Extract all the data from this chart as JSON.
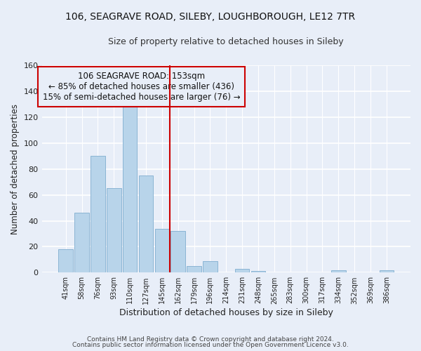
{
  "title": "106, SEAGRAVE ROAD, SILEBY, LOUGHBOROUGH, LE12 7TR",
  "subtitle": "Size of property relative to detached houses in Sileby",
  "xlabel": "Distribution of detached houses by size in Sileby",
  "ylabel": "Number of detached properties",
  "bar_labels": [
    "41sqm",
    "58sqm",
    "76sqm",
    "93sqm",
    "110sqm",
    "127sqm",
    "145sqm",
    "162sqm",
    "179sqm",
    "196sqm",
    "214sqm",
    "231sqm",
    "248sqm",
    "265sqm",
    "283sqm",
    "300sqm",
    "317sqm",
    "334sqm",
    "352sqm",
    "369sqm",
    "386sqm"
  ],
  "bar_values": [
    18,
    46,
    90,
    65,
    130,
    75,
    34,
    32,
    5,
    9,
    0,
    3,
    1,
    0,
    0,
    0,
    0,
    2,
    0,
    0,
    2
  ],
  "bar_color": "#b8d4ea",
  "bar_edge_color": "#8ab4d4",
  "ylim": [
    0,
    160
  ],
  "yticks": [
    0,
    20,
    40,
    60,
    80,
    100,
    120,
    140,
    160
  ],
  "vline_color": "#cc0000",
  "annotation_title": "106 SEAGRAVE ROAD: 153sqm",
  "annotation_line1": "← 85% of detached houses are smaller (436)",
  "annotation_line2": "15% of semi-detached houses are larger (76) →",
  "annotation_box_edge": "#cc0000",
  "footer1": "Contains HM Land Registry data © Crown copyright and database right 2024.",
  "footer2": "Contains public sector information licensed under the Open Government Licence v3.0.",
  "background_color": "#e8eef8",
  "title_fontsize": 10,
  "subtitle_fontsize": 9
}
